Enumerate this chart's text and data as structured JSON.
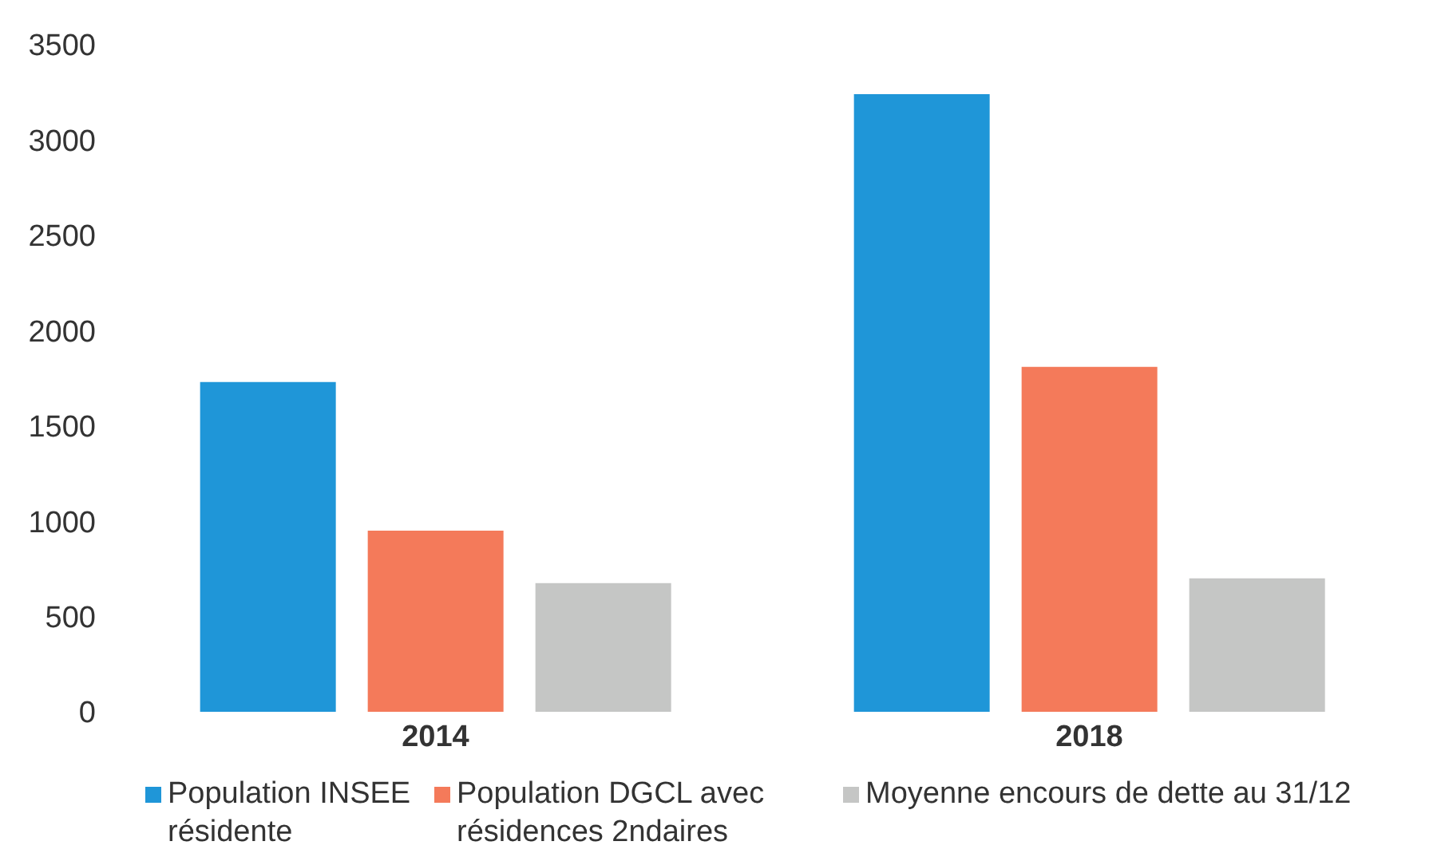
{
  "chart_data": {
    "type": "bar",
    "categories": [
      "2014",
      "2018"
    ],
    "series": [
      {
        "name": "Population INSEE résidente",
        "color": "#1f96d8",
        "values": [
          1730,
          3240
        ]
      },
      {
        "name": "Population DGCL avec résidences 2ndaires",
        "color": "#f47a5a",
        "values": [
          950,
          1810
        ]
      },
      {
        "name": "Moyenne encours de dette au 31/12",
        "color": "#c5c6c5",
        "values": [
          675,
          700
        ]
      }
    ],
    "ylim": [
      0,
      3500
    ],
    "yticks": [
      0,
      500,
      1000,
      1500,
      2000,
      2500,
      3000,
      3500
    ],
    "grid": false,
    "legend": "bottom"
  }
}
